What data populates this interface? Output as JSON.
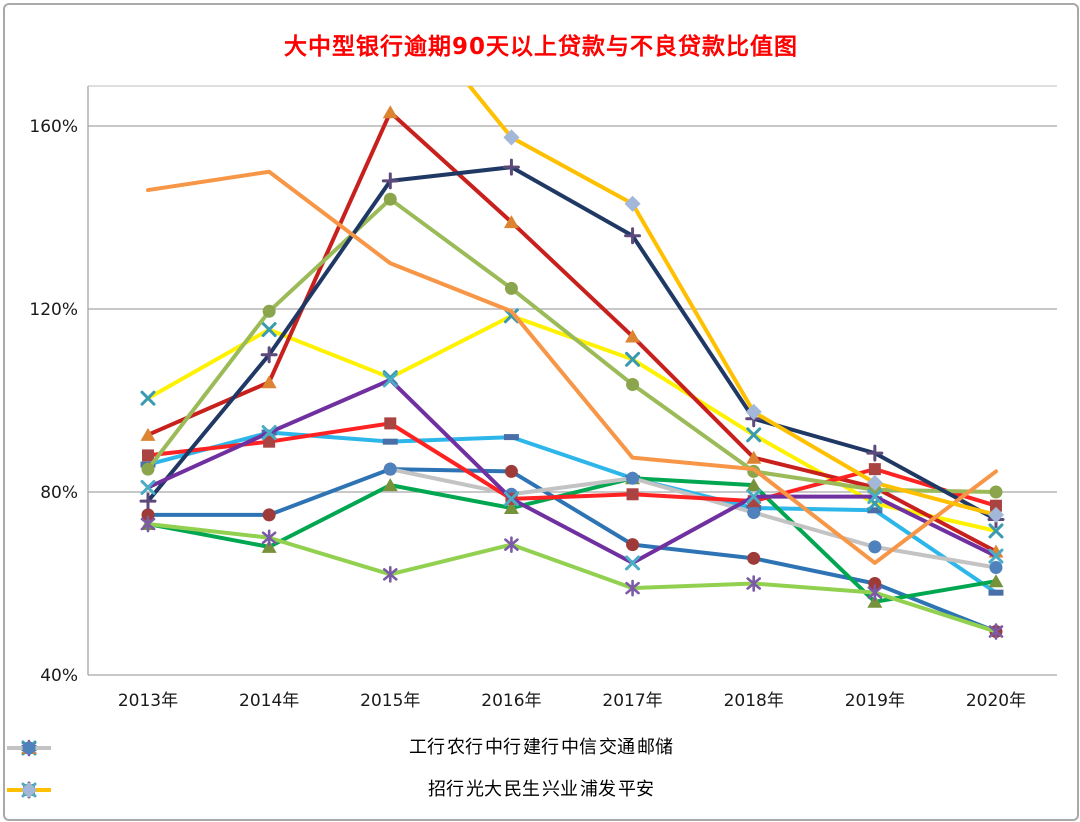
{
  "title": "大中型银行逾期90天以上贷款与不良贷款比值图",
  "title_color": "#ff0000",
  "chart_data": {
    "type": "line",
    "title": "大中型银行逾期90天以上贷款与不良贷款比值图",
    "categories": [
      "2013年",
      "2014年",
      "2015年",
      "2016年",
      "2017年",
      "2018年",
      "2019年",
      "2020年"
    ],
    "y_unit": "%",
    "ylim": [
      40,
      170
    ],
    "yticks": [
      40,
      80,
      120,
      160
    ],
    "ytick_labels": [
      "40%",
      "80%",
      "120%",
      "160%"
    ],
    "grid": true,
    "legend_position": "bottom",
    "legend_rows": [
      [
        "工行",
        "农行",
        "中行",
        "建行",
        "中信",
        "交通",
        "邮储"
      ],
      [
        "招行",
        "光大",
        "民生",
        "兴业",
        "浦发",
        "平安"
      ]
    ],
    "series": [
      {
        "name": "工行",
        "color": "#2db6e9",
        "marker": "dash",
        "marker_color": "#4a6fa8",
        "values": [
          86,
          93,
          91,
          92,
          83,
          76.5,
          76,
          58
        ]
      },
      {
        "name": "农行",
        "color": "#2e74b5",
        "marker": "circle",
        "marker_color": "#9e3a38",
        "values": [
          75,
          75,
          85,
          84.5,
          68.5,
          65.5,
          60,
          49.5
        ]
      },
      {
        "name": "中行",
        "color": "#00a650",
        "marker": "triangle",
        "marker_color": "#76933c",
        "values": [
          73,
          68,
          81.5,
          76.5,
          83,
          81.5,
          56,
          60.5
        ]
      },
      {
        "name": "建行",
        "color": "#92d050",
        "marker": "asterisk",
        "marker_color": "#7b5aa6",
        "values": [
          73,
          70,
          62,
          68.5,
          59,
          60,
          58,
          49.5
        ]
      },
      {
        "name": "中信",
        "color": "#fff200",
        "marker": "x",
        "marker_color": "#3a9ab0",
        "values": [
          100.5,
          115.5,
          105,
          118.5,
          109,
          92.5,
          77.5,
          71.5
        ]
      },
      {
        "name": "交通",
        "color": "#c8201c",
        "marker": "triangle",
        "marker_color": "#dd8433",
        "values": [
          92.5,
          104,
          163,
          139,
          114,
          87.5,
          81,
          67
        ]
      },
      {
        "name": "邮储",
        "color": "#c3c3c3",
        "marker": "circle",
        "marker_color": "#4f81bd",
        "values": [
          null,
          null,
          85,
          79.5,
          83,
          75.5,
          68,
          63.5
        ]
      },
      {
        "name": "招行",
        "color": "#ff2222",
        "marker": "square",
        "marker_color": "#a94442",
        "values": [
          88,
          91,
          95,
          78.5,
          79.5,
          78,
          85,
          77
        ]
      },
      {
        "name": "光大",
        "color": "#9bbb59",
        "marker": "circle",
        "marker_color": "#8aa54b",
        "values": [
          85,
          119.5,
          144,
          124.5,
          103.5,
          84.5,
          80.5,
          80
        ]
      },
      {
        "name": "民生",
        "color": "#1f3864",
        "marker": "plus",
        "marker_color": "#5e497b",
        "values": [
          78,
          110,
          148,
          151,
          136,
          96,
          88.5,
          74
        ]
      },
      {
        "name": "兴业",
        "color": "#7030a0",
        "marker": "x",
        "marker_color": "#4bacc6",
        "values": [
          81,
          93,
          104.5,
          78.5,
          64.5,
          79,
          79,
          66
        ]
      },
      {
        "name": "浦发",
        "color": "#f79646",
        "marker": "none",
        "marker_color": "",
        "values": [
          146,
          150,
          130,
          119.5,
          87.5,
          85,
          64.5,
          84.5
        ]
      },
      {
        "name": "平安",
        "color": "#ffc000",
        "marker": "diamond",
        "marker_color": "#a3b8d9",
        "values": [
          null,
          null,
          190,
          157.5,
          143,
          97.5,
          82,
          75
        ]
      }
    ]
  }
}
